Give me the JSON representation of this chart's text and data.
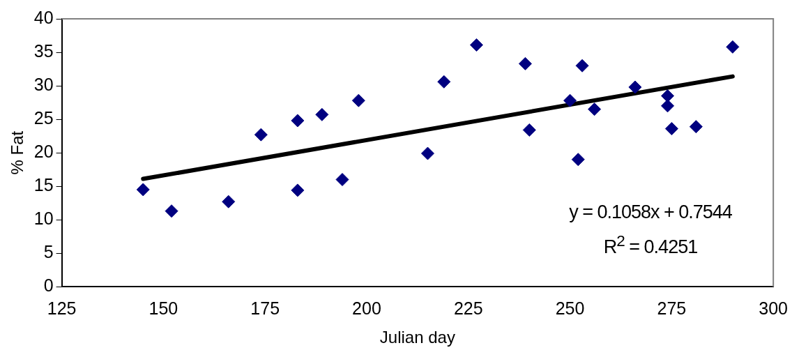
{
  "chart_data": {
    "type": "scatter",
    "xlabel": "Julian day",
    "ylabel": "% Fat",
    "xlim": [
      125,
      300
    ],
    "xticks": [
      125,
      150,
      175,
      200,
      225,
      250,
      275,
      300
    ],
    "ylim": [
      0,
      40
    ],
    "yticks": [
      0,
      5,
      10,
      15,
      20,
      25,
      30,
      35,
      40
    ],
    "grid": false,
    "legend": false,
    "marker": "diamond",
    "annotations": [
      "y = 0.1058x + 0.7544",
      "R$^{2}$ = 0.4251"
    ],
    "series": [
      {
        "type": "scatter",
        "color": "#000080",
        "x": [
          145,
          152,
          166,
          174,
          183,
          183,
          189,
          194,
          198,
          215,
          219,
          227,
          239,
          240,
          250,
          252,
          253,
          256,
          266,
          274,
          274,
          275,
          281,
          290
        ],
        "values": [
          14.5,
          11.3,
          12.7,
          22.7,
          24.8,
          14.4,
          25.7,
          16.0,
          27.8,
          19.9,
          30.6,
          36.1,
          33.3,
          23.4,
          27.8,
          19.0,
          33.0,
          26.5,
          29.8,
          28.5,
          27.0,
          23.6,
          23.9,
          35.8
        ]
      },
      {
        "type": "line",
        "color": "#000000",
        "marker": "none",
        "x": [
          145,
          290
        ],
        "values": [
          16.1,
          31.4
        ]
      }
    ]
  }
}
